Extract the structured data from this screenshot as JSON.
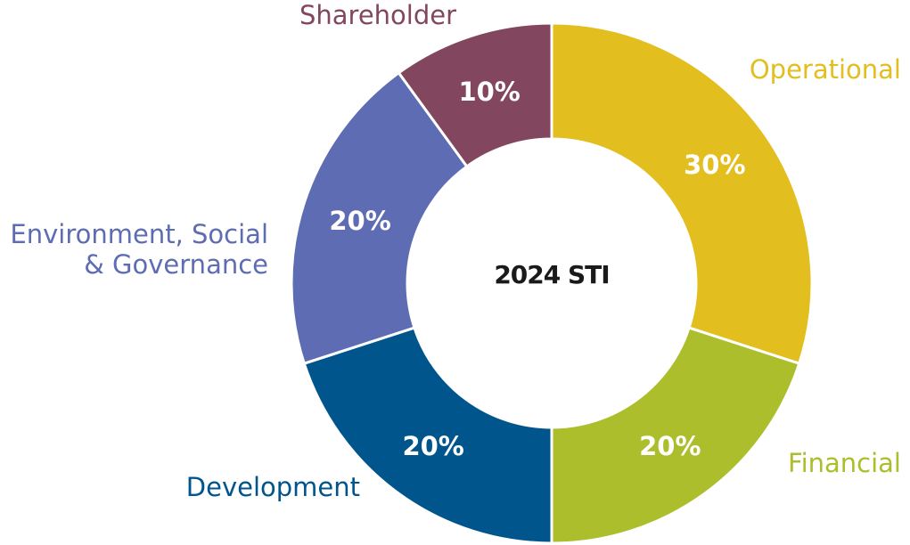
{
  "chart_data": {
    "type": "pie",
    "title": "2024 STI",
    "categories": [
      "Operational",
      "Financial",
      "Development",
      "Environment, Social & Governance",
      "Shareholder"
    ],
    "category_label_lines": [
      [
        "Operational"
      ],
      [
        "Financial"
      ],
      [
        "Development"
      ],
      [
        "Environment, Social",
        "& Governance"
      ],
      [
        "Shareholder"
      ]
    ],
    "values": [
      30,
      20,
      20,
      20,
      10
    ],
    "value_labels": [
      "30%",
      "20%",
      "20%",
      "20%",
      "10%"
    ],
    "colors": [
      "#e2be1f",
      "#adbe2c",
      "#00558c",
      "#5e6db3",
      "#82465e"
    ]
  }
}
